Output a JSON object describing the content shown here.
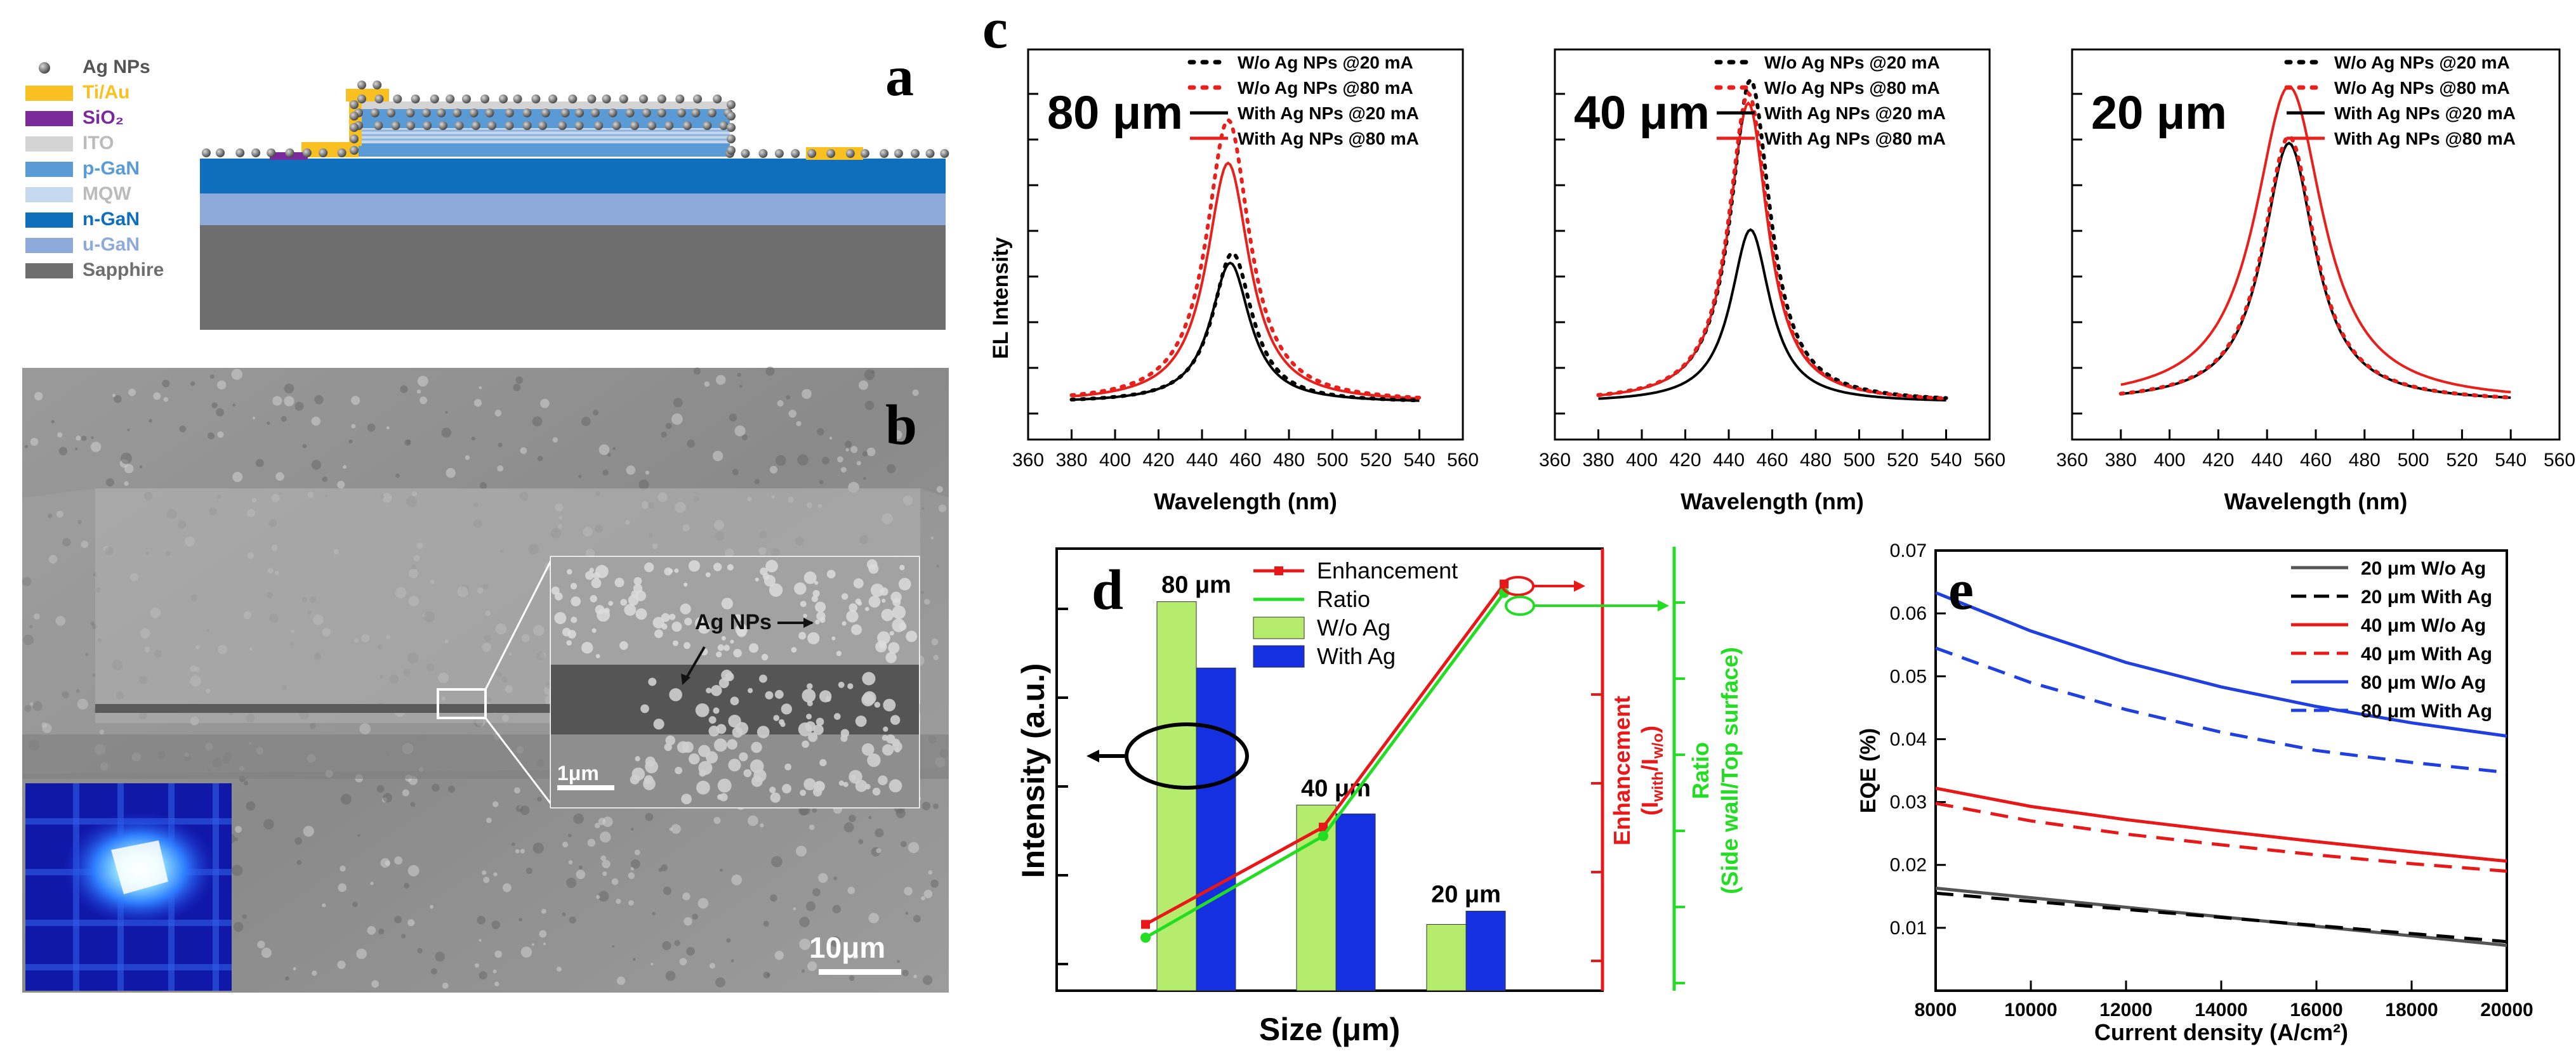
{
  "panel_letters": {
    "a": "a",
    "b": "b",
    "c": "c",
    "d": "d",
    "e": "e"
  },
  "layer_legend": [
    {
      "name": "Ag NPs",
      "color": "#6a6a6a"
    },
    {
      "name": "Ti/Au",
      "color": "#f8c020"
    },
    {
      "name": "SiO₂",
      "color": "#7a2a9a"
    },
    {
      "name": "ITO",
      "color": "#d4d4d4"
    },
    {
      "name": "p-GaN",
      "color": "#5b9bd5"
    },
    {
      "name": "MQW",
      "color": "#c5d9ee"
    },
    {
      "name": "n-GaN",
      "color": "#0f6fbd"
    },
    {
      "name": "u-GaN",
      "color": "#8eaadb"
    },
    {
      "name": "Sapphire",
      "color": "#6e6e6e"
    }
  ],
  "sem": {
    "inset_label": "Ag NPs",
    "inset_scale": "1μm",
    "main_scale": "10μm"
  },
  "chart_data": [
    {
      "id": "c",
      "type": "line",
      "ylabel": "EL Intensity",
      "xlabel": "Wavelength (nm)",
      "xlim": [
        360,
        560
      ],
      "xticks": [
        360,
        380,
        400,
        420,
        440,
        460,
        480,
        500,
        520,
        540,
        560
      ],
      "legend": [
        {
          "label": "W/o Ag NPs @20 mA",
          "color": "#000000",
          "dash": "dotted"
        },
        {
          "label": "W/o Ag NPs @80 mA",
          "color": "#e8201c",
          "dash": "dotted"
        },
        {
          "label": "With Ag NPs @20 mA",
          "color": "#000000",
          "dash": "solid"
        },
        {
          "label": "With Ag NPs @80 mA",
          "color": "#e8201c",
          "dash": "solid"
        }
      ],
      "subplots": [
        {
          "title": "80 μm",
          "peaks": [
            {
              "c": 454,
              "a": 0.45,
              "w": 11
            },
            {
              "c": 452,
              "a": 0.85,
              "w": 12
            },
            {
              "c": 453,
              "a": 0.42,
              "w": 11
            },
            {
              "c": 452,
              "a": 0.72,
              "w": 12
            }
          ]
        },
        {
          "title": "40 μm",
          "peaks": [
            {
              "c": 450,
              "a": 0.97,
              "w": 11
            },
            {
              "c": 449,
              "a": 0.93,
              "w": 11
            },
            {
              "c": 450,
              "a": 0.52,
              "w": 11
            },
            {
              "c": 449,
              "a": 0.9,
              "w": 11
            }
          ]
        },
        {
          "title": "20 μm",
          "peaks": [
            {
              "c": 449,
              "a": 0.8,
              "w": 13
            },
            {
              "c": 449,
              "a": 0.8,
              "w": 13
            },
            {
              "c": 449,
              "a": 0.78,
              "w": 13
            },
            {
              "c": 449,
              "a": 0.95,
              "w": 17
            }
          ]
        }
      ]
    },
    {
      "id": "d",
      "type": "bar",
      "xlabel": "Size (μm)",
      "ylabel": "Intensity (a.u.)",
      "categories": [
        "80 μm",
        "40 μm",
        "20 μm"
      ],
      "series": [
        {
          "name": "W/o Ag",
          "color": "#b6ec6e",
          "values": [
            0.88,
            0.42,
            0.15
          ]
        },
        {
          "name": "With Ag",
          "color": "#1530e0",
          "values": [
            0.73,
            0.4,
            0.18
          ]
        }
      ],
      "lines": [
        {
          "name": "Enhancement",
          "color": "#e81818",
          "marker": "square",
          "values": [
            0.15,
            0.37,
            0.92
          ]
        },
        {
          "name": "Ratio",
          "color": "#22dd22",
          "marker": "circle",
          "values": [
            0.12,
            0.35,
            0.9
          ]
        }
      ],
      "right_axis_1": {
        "label": "Enhancement",
        "sub": "(I",
        "sub1": "with",
        "slash": "/I",
        "sub2": "w/o",
        "close": ")",
        "color": "#e81818"
      },
      "right_axis_2": {
        "label": "Ratio",
        "sub": "(Side wall/Top surface)",
        "color": "#22dd22"
      }
    },
    {
      "id": "e",
      "type": "line",
      "xlabel": "Current density (A/cm²)",
      "ylabel": "EQE (%)",
      "xlim": [
        8000,
        20000
      ],
      "ylim": [
        0.0,
        0.07
      ],
      "xticks": [
        8000,
        10000,
        12000,
        14000,
        16000,
        18000,
        20000
      ],
      "yticks": [
        "0.01",
        "0.02",
        "0.03",
        "0.04",
        "0.05",
        "0.06",
        "0.07"
      ],
      "series": [
        {
          "name": "20 μm W/o Ag",
          "color": "#555555",
          "dash": "solid",
          "x": [
            8000,
            20000
          ],
          "y": [
            0.0163,
            0.0072
          ]
        },
        {
          "name": "20 μm With Ag",
          "color": "#000000",
          "dash": "dashed",
          "x": [
            8000,
            20000
          ],
          "y": [
            0.0155,
            0.0078
          ]
        },
        {
          "name": "40 μm W/o Ag",
          "color": "#e81818",
          "dash": "solid",
          "x": [
            8000,
            10000,
            12000,
            14000,
            16000,
            18000,
            20000
          ],
          "y": [
            0.0322,
            0.0293,
            0.0272,
            0.0254,
            0.0237,
            0.0221,
            0.0206
          ]
        },
        {
          "name": "40 μm With Ag",
          "color": "#e81818",
          "dash": "dashed",
          "x": [
            8000,
            10000,
            12000,
            14000,
            16000,
            18000,
            20000
          ],
          "y": [
            0.0298,
            0.027,
            0.0249,
            0.0232,
            0.0216,
            0.0202,
            0.019
          ]
        },
        {
          "name": "80 μm W/o Ag",
          "color": "#1f3fe0",
          "dash": "solid",
          "x": [
            8000,
            10000,
            12000,
            14000,
            16000,
            18000,
            20000
          ],
          "y": [
            0.0633,
            0.0572,
            0.0522,
            0.0483,
            0.0452,
            0.0426,
            0.0405
          ]
        },
        {
          "name": "80 μm With Ag",
          "color": "#1f3fe0",
          "dash": "dashed",
          "x": [
            8000,
            10000,
            12000,
            14000,
            16000,
            18000,
            20000
          ],
          "y": [
            0.0545,
            0.049,
            0.0447,
            0.0411,
            0.0382,
            0.0363,
            0.0347
          ]
        }
      ]
    }
  ]
}
